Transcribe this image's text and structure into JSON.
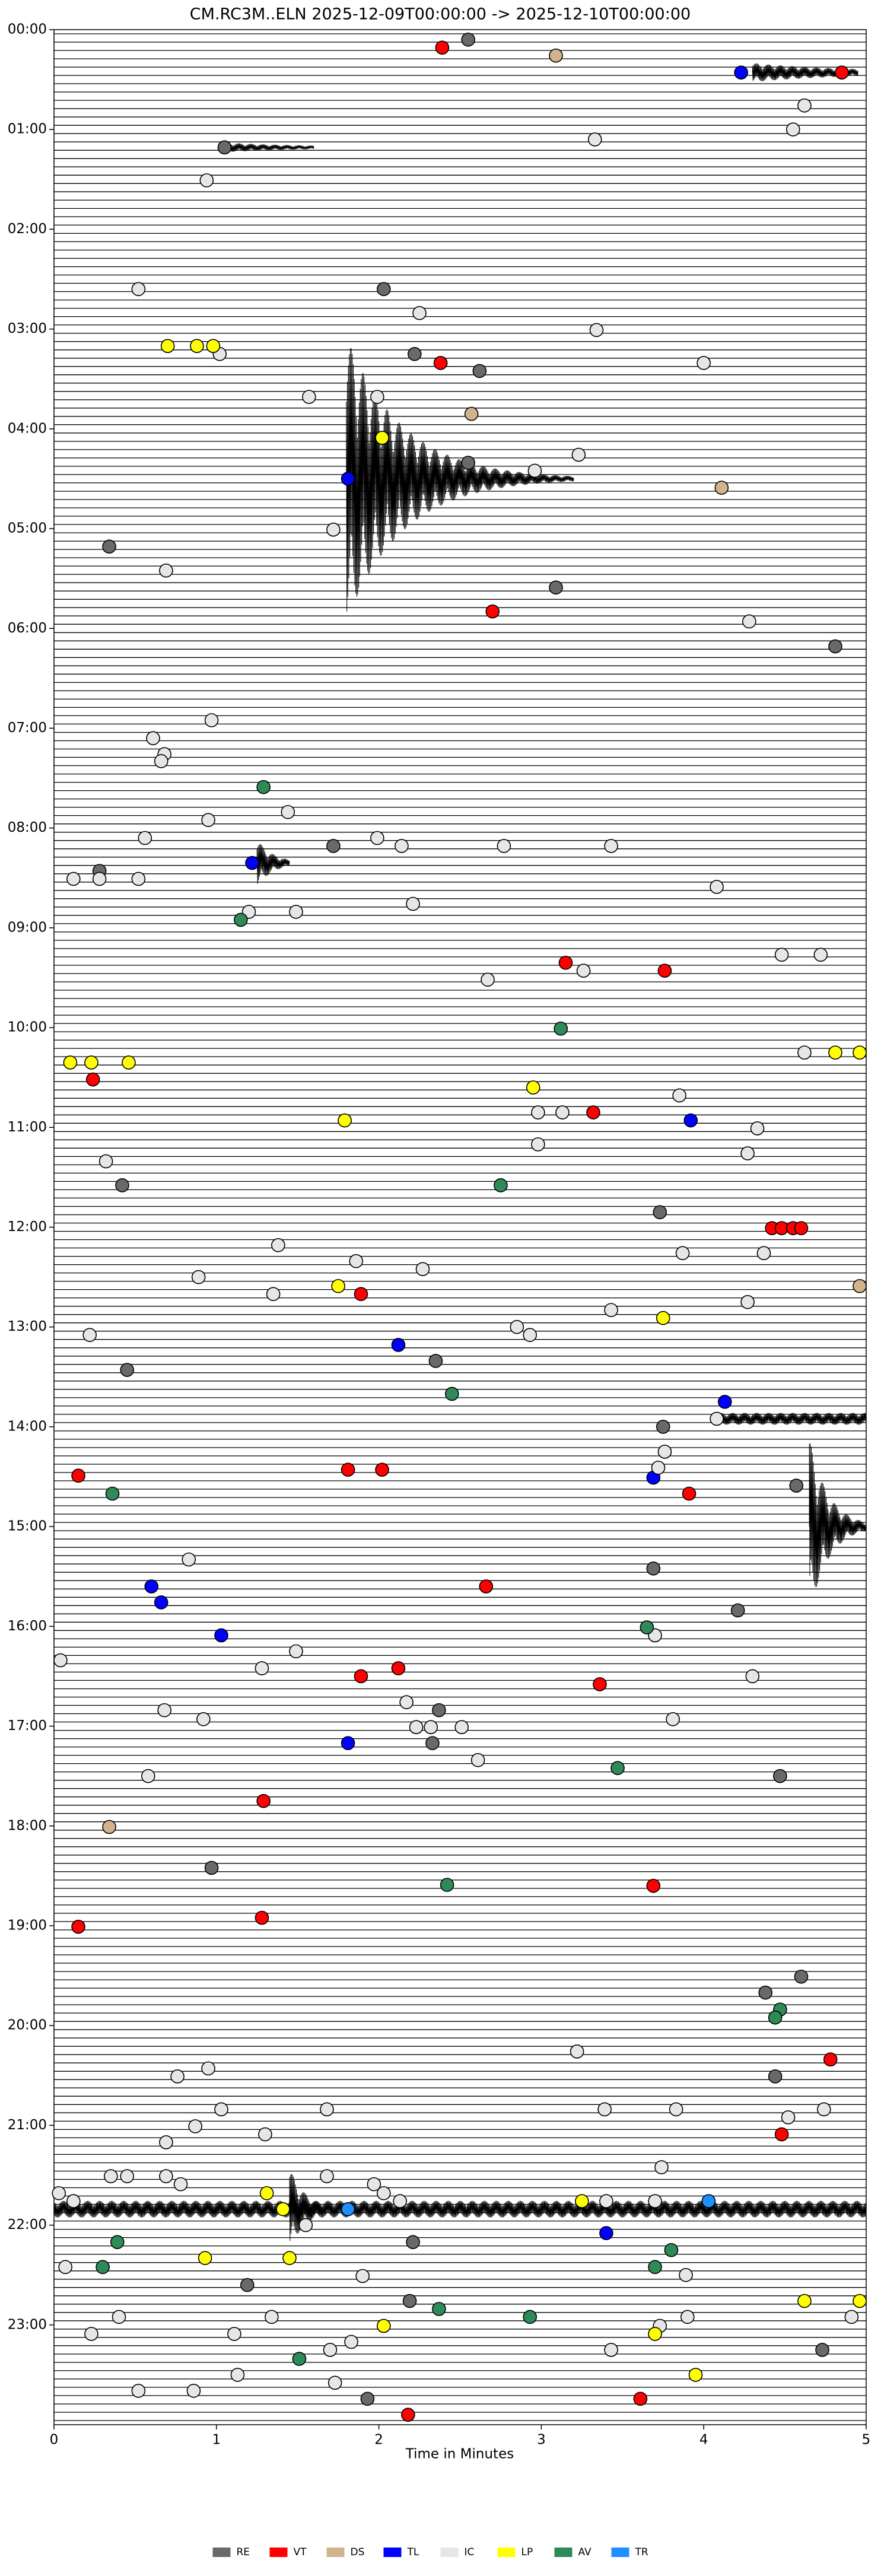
{
  "chart_data": {
    "type": "scatter",
    "title": "CM.RC3M..ELN  2025-12-09T00:00:00 -> 2025-12-10T00:00:00",
    "x_label": "Time in Minutes",
    "xlim": [
      0,
      5
    ],
    "xticks": [
      0,
      1,
      2,
      3,
      4,
      5
    ],
    "ylim": [
      0,
      24
    ],
    "y_inverted": true,
    "yticks": [
      {
        "value": 0,
        "label": "00:00"
      },
      {
        "value": 1,
        "label": "01:00"
      },
      {
        "value": 2,
        "label": "02:00"
      },
      {
        "value": 3,
        "label": "03:00"
      },
      {
        "value": 4,
        "label": "04:00"
      },
      {
        "value": 5,
        "label": "05:00"
      },
      {
        "value": 6,
        "label": "06:00"
      },
      {
        "value": 7,
        "label": "07:00"
      },
      {
        "value": 8,
        "label": "08:00"
      },
      {
        "value": 9,
        "label": "09:00"
      },
      {
        "value": 10,
        "label": "10:00"
      },
      {
        "value": 11,
        "label": "11:00"
      },
      {
        "value": 12,
        "label": "12:00"
      },
      {
        "value": 13,
        "label": "13:00"
      },
      {
        "value": 14,
        "label": "14:00"
      },
      {
        "value": 15,
        "label": "15:00"
      },
      {
        "value": 16,
        "label": "16:00"
      },
      {
        "value": 17,
        "label": "17:00"
      },
      {
        "value": 18,
        "label": "18:00"
      },
      {
        "value": 19,
        "label": "19:00"
      },
      {
        "value": 20,
        "label": "20:00"
      },
      {
        "value": 21,
        "label": "21:00"
      },
      {
        "value": 22,
        "label": "22:00"
      },
      {
        "value": 23,
        "label": "23:00"
      }
    ],
    "legend": "bottom",
    "series": [
      {
        "name": "RE",
        "color": "#696969",
        "x": [
          2.55,
          1.05,
          2.03,
          2.22,
          2.62,
          2.55,
          0.34,
          3.09,
          4.81,
          1.72,
          0.28,
          3.73,
          0.42,
          2.35,
          0.45,
          3.75,
          4.57,
          3.69,
          4.21,
          2.37,
          2.33,
          4.47,
          0.97,
          4.6,
          4.38,
          4.44,
          2.21,
          1.19,
          2.19,
          4.73,
          1.93
        ],
        "values": [
          0.1,
          1.18,
          2.6,
          3.25,
          3.42,
          4.34,
          5.18,
          5.59,
          6.18,
          8.18,
          8.43,
          11.85,
          11.58,
          13.34,
          13.43,
          14.0,
          14.59,
          15.42,
          15.84,
          16.84,
          17.17,
          17.5,
          18.42,
          19.51,
          19.67,
          20.51,
          22.17,
          22.6,
          22.76,
          23.25,
          23.74
        ]
      },
      {
        "name": "VT",
        "color": "#ff0000",
        "x": [
          2.39,
          4.85,
          2.38,
          2.7,
          3.15,
          3.76,
          0.24,
          3.32,
          4.42,
          4.48,
          4.55,
          4.6,
          1.89,
          1.81,
          2.02,
          0.15,
          3.91,
          2.66,
          2.12,
          1.89,
          3.36,
          1.29,
          3.69,
          1.28,
          0.15,
          4.78,
          4.48,
          3.61,
          2.18
        ],
        "values": [
          0.18,
          0.43,
          3.34,
          5.83,
          9.35,
          9.43,
          10.52,
          10.85,
          12.01,
          12.01,
          12.01,
          12.01,
          12.67,
          14.43,
          14.43,
          14.49,
          14.67,
          15.6,
          16.42,
          16.5,
          16.58,
          17.75,
          18.6,
          18.92,
          19.01,
          20.34,
          21.09,
          23.74,
          23.9
        ]
      },
      {
        "name": "DS",
        "color": "#d2b48c",
        "x": [
          3.09,
          2.57,
          4.11,
          4.96,
          0.34
        ],
        "values": [
          0.26,
          3.85,
          4.59,
          12.59,
          18.01
        ]
      },
      {
        "name": "TL",
        "color": "#0000ff",
        "x": [
          4.23,
          1.81,
          1.22,
          3.92,
          2.12,
          4.13,
          3.69,
          0.6,
          0.66,
          1.03,
          1.81,
          3.4
        ],
        "values": [
          0.43,
          4.5,
          8.35,
          10.93,
          13.18,
          13.75,
          14.51,
          15.6,
          15.76,
          16.09,
          17.17,
          22.08
        ]
      },
      {
        "name": "IC",
        "color": "#e6e6e6",
        "x": [
          4.62,
          4.55,
          3.33,
          0.94,
          0.52,
          2.25,
          3.34,
          1.02,
          4.0,
          1.57,
          1.99,
          3.23,
          2.96,
          1.72,
          0.69,
          4.28,
          0.97,
          0.61,
          0.68,
          0.66,
          1.44,
          0.95,
          0.56,
          1.99,
          2.14,
          2.77,
          3.43,
          0.12,
          0.28,
          0.52,
          4.08,
          2.21,
          1.2,
          1.49,
          4.48,
          4.72,
          3.26,
          2.67,
          4.62,
          3.85,
          2.98,
          3.13,
          4.33,
          2.98,
          4.27,
          0.32,
          1.38,
          3.87,
          4.37,
          1.86,
          2.27,
          0.89,
          1.35,
          4.27,
          3.43,
          2.85,
          0.22,
          2.93,
          4.08,
          3.76,
          3.72,
          0.83,
          3.7,
          1.49,
          0.04,
          1.28,
          4.3,
          2.17,
          0.68,
          3.81,
          0.92,
          2.23,
          2.32,
          2.51,
          2.61,
          0.58,
          3.22,
          0.95,
          0.76,
          1.03,
          1.68,
          3.39,
          3.83,
          4.74,
          4.52,
          0.87,
          1.3,
          0.69,
          3.74,
          0.35,
          0.45,
          0.69,
          1.68,
          0.78,
          1.97,
          0.03,
          2.03,
          0.12,
          2.13,
          3.4,
          3.7,
          1.55,
          0.07,
          1.9,
          3.89,
          1.34,
          0.4,
          3.9,
          4.91,
          3.73,
          1.11,
          0.23,
          1.83,
          1.7,
          3.43,
          1.13,
          1.73,
          0.52,
          0.86
        ],
        "values": [
          0.76,
          1.0,
          1.1,
          1.51,
          2.6,
          2.84,
          3.01,
          3.25,
          3.34,
          3.68,
          3.68,
          4.26,
          4.42,
          5.01,
          5.42,
          5.93,
          6.92,
          7.1,
          7.26,
          7.33,
          7.84,
          7.92,
          8.1,
          8.1,
          8.18,
          8.18,
          8.18,
          8.51,
          8.51,
          8.51,
          8.59,
          8.76,
          8.84,
          8.84,
          9.27,
          9.27,
          9.43,
          9.52,
          10.25,
          10.68,
          10.85,
          10.85,
          11.01,
          11.17,
          11.26,
          11.34,
          12.18,
          12.26,
          12.26,
          12.34,
          12.42,
          12.5,
          12.67,
          12.75,
          12.83,
          13.0,
          13.08,
          13.08,
          13.92,
          14.25,
          14.41,
          15.33,
          16.09,
          16.25,
          16.34,
          16.42,
          16.5,
          16.76,
          16.84,
          16.93,
          16.93,
          17.01,
          17.01,
          17.01,
          17.34,
          17.5,
          20.26,
          20.43,
          20.51,
          20.84,
          20.84,
          20.84,
          20.84,
          20.84,
          20.92,
          21.01,
          21.09,
          21.17,
          21.42,
          21.51,
          21.51,
          21.51,
          21.51,
          21.59,
          21.59,
          21.68,
          21.68,
          21.76,
          21.76,
          21.76,
          21.76,
          22.0,
          22.42,
          22.51,
          22.5,
          22.92,
          22.92,
          22.92,
          22.92,
          23.01,
          23.09,
          23.09,
          23.17,
          23.25,
          23.25,
          23.5,
          23.58,
          23.66,
          23.66
        ]
      },
      {
        "name": "LP",
        "color": "#ffff00",
        "x": [
          0.7,
          0.88,
          0.98,
          2.02,
          4.81,
          4.96,
          0.1,
          0.23,
          0.46,
          2.95,
          1.79,
          1.75,
          3.75,
          1.31,
          3.25,
          1.41,
          0.93,
          1.45,
          4.62,
          4.96,
          2.03,
          3.7,
          3.95
        ],
        "values": [
          3.17,
          3.17,
          3.17,
          4.09,
          10.25,
          10.25,
          10.35,
          10.35,
          10.35,
          10.6,
          10.93,
          12.59,
          12.91,
          21.68,
          21.76,
          21.84,
          22.33,
          22.33,
          22.76,
          22.76,
          23.01,
          23.09,
          23.5
        ]
      },
      {
        "name": "AV",
        "color": "#2e8b57",
        "x": [
          1.29,
          1.15,
          3.12,
          2.75,
          2.45,
          0.36,
          3.65,
          3.47,
          2.42,
          4.47,
          4.44,
          0.39,
          3.8,
          0.3,
          3.7,
          2.37,
          2.93,
          1.51
        ],
        "values": [
          7.59,
          8.92,
          10.01,
          11.58,
          13.67,
          14.67,
          16.01,
          17.42,
          18.59,
          19.84,
          19.92,
          22.17,
          22.25,
          22.42,
          22.42,
          22.84,
          22.92,
          23.34
        ]
      },
      {
        "name": "TR",
        "color": "#1e90ff",
        "x": [
          4.03,
          1.81
        ],
        "values": [
          21.76,
          21.84
        ]
      }
    ]
  }
}
